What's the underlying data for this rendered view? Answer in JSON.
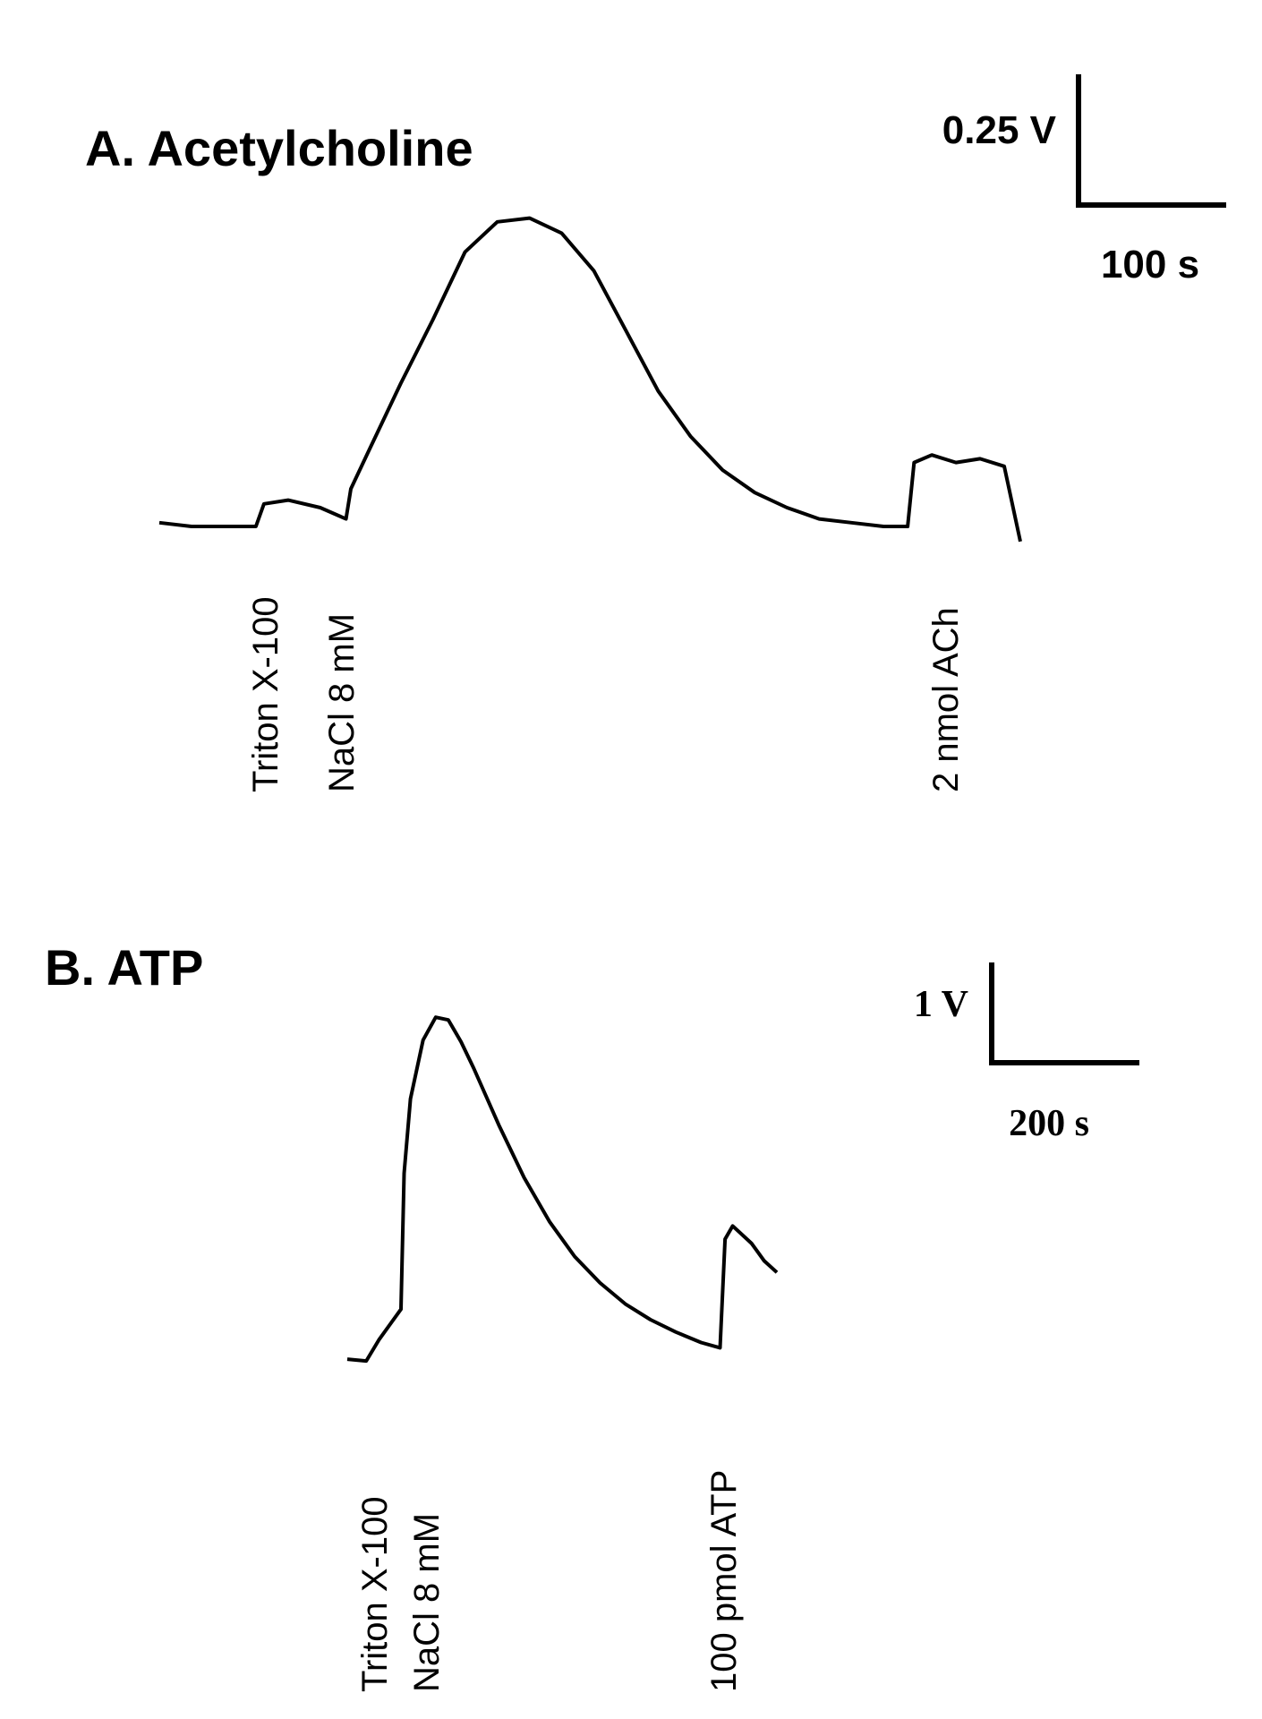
{
  "chart_data": [
    {
      "type": "line",
      "title": "A. Acetylcholine",
      "scale_bar": {
        "y_label": "0.25 V",
        "x_label": "100 s"
      },
      "annotations": [
        "Triton X-100",
        "NaCl 8 mM",
        "2 nmol ACh"
      ],
      "series": [
        {
          "x": [
            0,
            40,
            80,
            120,
            130,
            160,
            200,
            232,
            238,
            260,
            300,
            340,
            380,
            420,
            460,
            500,
            540,
            580,
            620,
            660,
            700,
            740,
            780,
            820,
            860,
            900,
            930,
            938,
            960,
            990,
            1020,
            1050,
            1070
          ],
          "y": [
            0.01,
            0.0,
            0.0,
            0.0,
            0.06,
            0.07,
            0.05,
            0.02,
            0.1,
            0.2,
            0.38,
            0.55,
            0.73,
            0.81,
            0.82,
            0.78,
            0.68,
            0.52,
            0.36,
            0.24,
            0.15,
            0.09,
            0.05,
            0.02,
            0.01,
            0.0,
            0.0,
            0.17,
            0.19,
            0.17,
            0.18,
            0.16,
            -0.04
          ]
        }
      ],
      "xlim": [
        0,
        1070
      ],
      "ylim": [
        -0.1,
        0.9
      ]
    },
    {
      "type": "line",
      "title": "B. ATP",
      "scale_bar": {
        "y_label": "1 V",
        "x_label": "200 s"
      },
      "annotations": [
        "Triton X-100",
        "NaCl 8 mM",
        "100 pmol ATP"
      ],
      "series": [
        {
          "x": [
            0,
            30,
            50,
            70,
            85,
            90,
            100,
            120,
            140,
            160,
            180,
            200,
            240,
            280,
            320,
            360,
            400,
            440,
            480,
            520,
            560,
            590,
            598,
            610,
            640,
            660,
            680
          ],
          "y": [
            0.03,
            0.01,
            0.25,
            0.45,
            0.6,
            2.15,
            3.0,
            3.67,
            3.93,
            3.9,
            3.65,
            3.35,
            2.7,
            2.1,
            1.6,
            1.2,
            0.9,
            0.66,
            0.48,
            0.34,
            0.22,
            0.16,
            1.4,
            1.55,
            1.35,
            1.15,
            1.02
          ]
        }
      ],
      "xlim": [
        0,
        680
      ],
      "ylim": [
        -0.5,
        4.3
      ]
    }
  ]
}
